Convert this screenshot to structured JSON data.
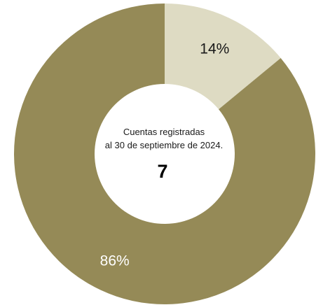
{
  "chart_data": {
    "type": "pie",
    "donut": true,
    "start_angle_deg": 0,
    "direction": "clockwise",
    "slices": [
      {
        "value": 14,
        "label": "14%",
        "color": "#dedbc3",
        "label_color": "#1a1a1a"
      },
      {
        "value": 86,
        "label": "86%",
        "color": "#958a57",
        "label_color": "#ffffff"
      }
    ],
    "center": {
      "caption_line1": "Cuentas registradas",
      "caption_line2": "al 30 de septiembre de 2024.",
      "value": "7"
    }
  }
}
